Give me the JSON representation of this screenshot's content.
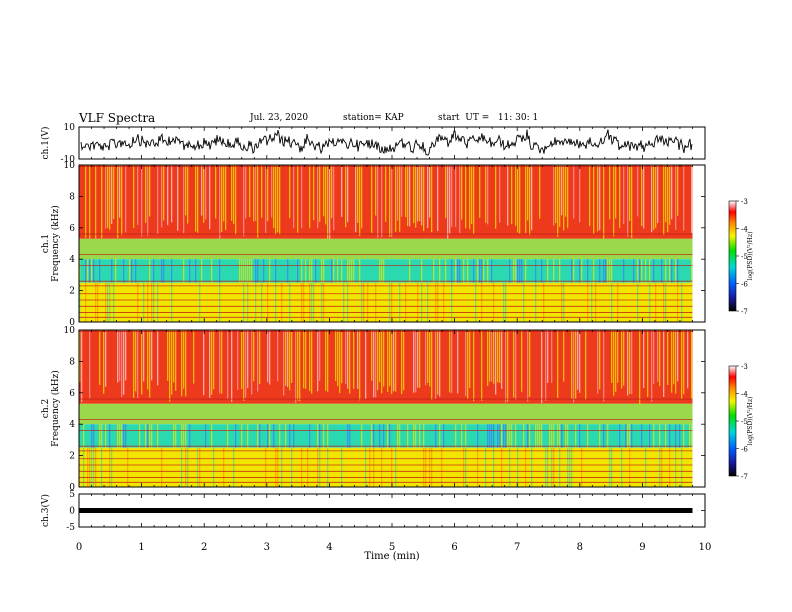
{
  "header": {
    "title": "VLF Spectra",
    "date": "Jul. 23, 2020",
    "station": "station= KAP",
    "start": "start  UT =   11: 30: 1"
  },
  "chart_data": [
    {
      "type": "line",
      "name": "ch1-waveform",
      "ylabel": "ch.1(V)",
      "ylim": [
        -10,
        10
      ],
      "yticks": [
        "10",
        "-10"
      ],
      "xlim": [
        0,
        10
      ],
      "x_end": 9.8
    },
    {
      "type": "heatmap",
      "name": "ch1-spectrogram",
      "ylabel": "ch.1 Frequency (kHz)",
      "ylim": [
        0,
        10
      ],
      "yticks": [
        "0",
        "2",
        "4",
        "6",
        "8",
        "10"
      ],
      "xlim": [
        0,
        10
      ],
      "x_end": 9.8,
      "colorbar": {
        "label": "log(PSD)(V²/Hz)",
        "range": [
          -7,
          -3
        ],
        "ticks": [
          "-3",
          "-4",
          "-5",
          "-6",
          "-7"
        ]
      }
    },
    {
      "type": "heatmap",
      "name": "ch2-spectrogram",
      "ylabel": "ch.2 Frequency (kHz)",
      "ylim": [
        0,
        10
      ],
      "yticks": [
        "0",
        "2",
        "4",
        "6",
        "8",
        "10"
      ],
      "xlim": [
        0,
        10
      ],
      "x_end": 9.8,
      "colorbar": {
        "label": "log(PSD)(V²/Hz)",
        "range": [
          -7,
          -3
        ],
        "ticks": [
          "-3",
          "-4",
          "-5",
          "-6",
          "-7"
        ]
      }
    },
    {
      "type": "line",
      "name": "ch3-waveform",
      "ylabel": "ch.3(V)",
      "ylim": [
        -5,
        5
      ],
      "yticks": [
        "5",
        "0",
        "-5"
      ],
      "xlim": [
        0,
        10
      ],
      "x_end": 9.8,
      "level": 0
    }
  ],
  "xaxis": {
    "label": "Time (min)",
    "ticks": [
      "0",
      "1",
      "2",
      "3",
      "4",
      "5",
      "6",
      "7",
      "8",
      "9",
      "10"
    ]
  },
  "colors": {
    "low_band": "#2bd9b0",
    "mid_band": "#f2e600",
    "high_band": "#ee3a1c"
  }
}
